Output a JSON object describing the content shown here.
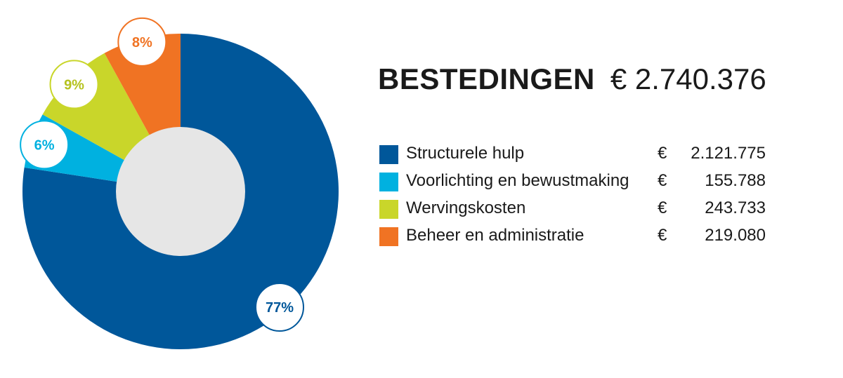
{
  "header": {
    "title": "BESTEDINGEN",
    "total": "€ 2.740.376"
  },
  "chart_data": {
    "type": "pie",
    "style": "donut",
    "title": "BESTEDINGEN",
    "total": 2740376,
    "series": [
      {
        "name": "Structurele hulp",
        "value": 2121775,
        "percent": 77,
        "label": "77%",
        "color": "#00579a"
      },
      {
        "name": "Voorlichting en bewustmaking",
        "value": 155788,
        "percent": 6,
        "label": "6%",
        "color": "#00b1e0"
      },
      {
        "name": "Wervingskosten",
        "value": 243733,
        "percent": 9,
        "label": "9%",
        "color": "#c9d62a"
      },
      {
        "name": "Beheer en administratie",
        "value": 219080,
        "percent": 8,
        "label": "8%",
        "color": "#f07323"
      }
    ],
    "inner_color": "#e6e6e6",
    "legend_position": "right"
  },
  "legend": {
    "currency_symbol": "€",
    "items": [
      {
        "label": "Structurele hulp",
        "amount": "2.121.775"
      },
      {
        "label": "Voorlichting en bewustmaking",
        "amount": "155.788"
      },
      {
        "label": "Wervingskosten",
        "amount": "243.733"
      },
      {
        "label": "Beheer en administratie",
        "amount": "219.080"
      }
    ]
  }
}
